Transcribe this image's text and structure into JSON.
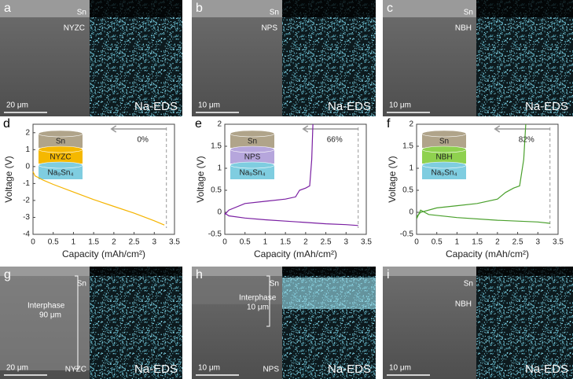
{
  "images": [
    {
      "letter": "a",
      "top_label": "Sn",
      "interface_label": "NYZC",
      "scale_bar": "20 μm",
      "eds": "Na-EDS"
    },
    {
      "letter": "b",
      "top_label": "Sn",
      "interface_label": "NPS",
      "scale_bar": "10 μm",
      "eds": "Na-EDS"
    },
    {
      "letter": "c",
      "top_label": "Sn",
      "interface_label": "NBH",
      "scale_bar": "10 μm",
      "eds": "Na-EDS"
    },
    {
      "letter": "g",
      "top_label": "Sn",
      "interphase": "Interphase",
      "interphase_thickness": "90 μm",
      "bottom_label": "NYZC",
      "scale_bar": "20 μm",
      "eds": "Na-EDS"
    },
    {
      "letter": "h",
      "top_label": "Sn",
      "interphase": "Interphase",
      "interphase_thickness": "10 μm",
      "bottom_label": "NPS",
      "scale_bar": "10 μm",
      "eds": "Na-EDS"
    },
    {
      "letter": "i",
      "top_label": "Sn",
      "interface_label": "NBH",
      "scale_bar": "10 μm",
      "eds": "Na-EDS"
    }
  ],
  "chart_data": [
    {
      "type": "line",
      "panel": "d",
      "xlabel": "Capacity (mAh/cm²)",
      "ylabel": "Voltage (V)",
      "xlim": [
        0,
        3.5
      ],
      "xticks": [
        0,
        0.5,
        1,
        1.5,
        2,
        2.5,
        3,
        3.5
      ],
      "ylim": [
        -4,
        2.5
      ],
      "yticks": [
        -4,
        -3,
        -2,
        -1,
        0,
        1,
        2
      ],
      "annotation": "0%",
      "reference_x": 3.3,
      "inset_layers": [
        "Sn",
        "NYZC",
        "Na₉Sn₄"
      ],
      "inset_colors": [
        "#b0a48a",
        "#f5b800",
        "#7fcde0"
      ],
      "series": [
        {
          "color": "#f5b400",
          "x": [
            0,
            0.05,
            0.25,
            0.5,
            1,
            1.5,
            2,
            2.5,
            3,
            3.25
          ],
          "values": [
            -0.3,
            -0.55,
            -0.8,
            -1.05,
            -1.5,
            -1.95,
            -2.35,
            -2.75,
            -3.2,
            -3.45
          ]
        }
      ]
    },
    {
      "type": "line",
      "panel": "e",
      "xlabel": "Capacity (mAh/cm²)",
      "ylabel": "Voltage (V)",
      "xlim": [
        0,
        3.5
      ],
      "xticks": [
        0,
        0.5,
        1,
        1.5,
        2,
        2.5,
        3,
        3.5
      ],
      "ylim": [
        -0.5,
        2
      ],
      "yticks": [
        -0.5,
        0,
        0.5,
        1,
        1.5,
        2
      ],
      "annotation": "66%",
      "reference_x": 3.3,
      "inset_layers": [
        "Sn",
        "NPS",
        "Na₉Sn₄"
      ],
      "inset_colors": [
        "#b0a48a",
        "#b6a6dc",
        "#7fcde0"
      ],
      "series": [
        {
          "color": "#7a1fa2",
          "x": [
            0,
            0.1,
            0.5,
            1,
            1.5,
            2,
            2.5,
            3,
            3.3
          ],
          "values": [
            -0.02,
            -0.08,
            -0.13,
            -0.17,
            -0.2,
            -0.23,
            -0.26,
            -0.28,
            -0.3
          ]
        },
        {
          "color": "#7a1fa2",
          "x": [
            0,
            0.1,
            0.5,
            1,
            1.5,
            1.75,
            1.85,
            2.0,
            2.1,
            2.15,
            2.18
          ],
          "values": [
            -0.05,
            0.05,
            0.2,
            0.25,
            0.3,
            0.35,
            0.5,
            0.55,
            0.6,
            1.2,
            2.0
          ]
        }
      ]
    },
    {
      "type": "line",
      "panel": "f",
      "xlabel": "Capacity (mAh/cm²)",
      "ylabel": "Voltage (V)",
      "xlim": [
        0,
        3.5
      ],
      "xticks": [
        0,
        0.5,
        1,
        1.5,
        2,
        2.5,
        3,
        3.5
      ],
      "ylim": [
        -0.5,
        2
      ],
      "yticks": [
        -0.5,
        0,
        0.5,
        1,
        1.5,
        2
      ],
      "annotation": "82%",
      "reference_x": 3.3,
      "inset_layers": [
        "Sn",
        "NBH",
        "Na₉Sn₄"
      ],
      "inset_colors": [
        "#b0a48a",
        "#8fd14f",
        "#7fcde0"
      ],
      "series": [
        {
          "color": "#4aa02c",
          "x": [
            0,
            0.1,
            0.3,
            1,
            2,
            3,
            3.3
          ],
          "values": [
            -0.15,
            0.05,
            -0.05,
            -0.12,
            -0.18,
            -0.22,
            -0.25
          ]
        },
        {
          "color": "#4aa02c",
          "x": [
            0,
            0.1,
            0.5,
            1,
            1.5,
            2,
            2.2,
            2.4,
            2.55,
            2.65,
            2.7
          ],
          "values": [
            -0.1,
            0.0,
            0.1,
            0.15,
            0.2,
            0.3,
            0.45,
            0.55,
            0.6,
            1.2,
            2.0
          ]
        }
      ]
    }
  ]
}
